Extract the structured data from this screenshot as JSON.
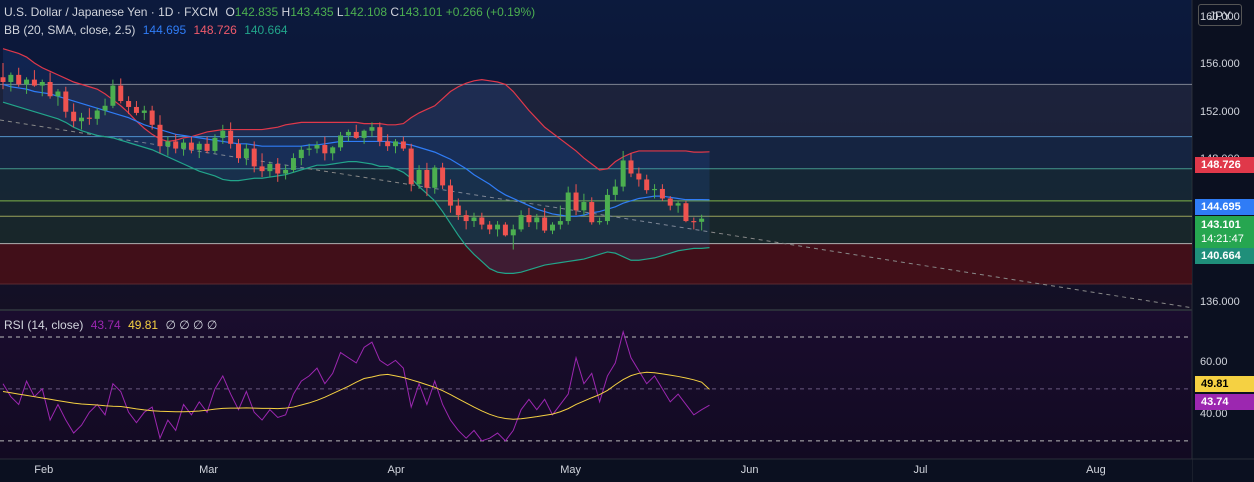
{
  "header": {
    "symbol": "U.S. Dollar / Japanese Yen · 1D · FXCM",
    "open_label": "O",
    "open": "142.835",
    "high_label": "H",
    "high": "143.435",
    "low_label": "L",
    "low": "142.108",
    "close_label": "C",
    "close": "143.101",
    "change": "+0.266 (+0.19%)"
  },
  "bb_legend": {
    "name": "BB (20, SMA, close, 2.5)",
    "basis": "144.695",
    "upper": "148.726",
    "lower": "140.664"
  },
  "rsi_legend": {
    "name": "RSI (14, close)",
    "rsi": "43.74",
    "ma": "49.81",
    "extras": "∅ ∅ ∅ ∅"
  },
  "currency_button": "JPY",
  "price_axis": [
    "160.000",
    "156.000",
    "152.000",
    "148.000",
    "144.000",
    "136.000"
  ],
  "rsi_axis": [
    "60.00",
    "40.00"
  ],
  "time_axis": [
    "Feb",
    "Mar",
    "Apr",
    "May",
    "Jun",
    "Jul",
    "Aug"
  ],
  "price_labels": {
    "upper": "148.726",
    "basis": "144.695",
    "last": "143.101",
    "countdown": "14:21:47",
    "lower": "140.664",
    "rsi_ma": "49.81",
    "rsi": "43.74"
  },
  "colors": {
    "bg": "#0b1020",
    "up": "#4caf50",
    "down": "#ef5350",
    "upper_band": "#e0384a",
    "basis": "#2f7cf6",
    "lower_band": "#22a58a",
    "rsi": "#9c27b0",
    "rsi_ma": "#f5d142"
  },
  "chart_data": {
    "type": "candlestick",
    "title": "U.S. Dollar / Japanese Yen · 1D · FXCM",
    "ylim": [
      135.5,
      161.5
    ],
    "rsi_ylim": [
      23,
      80
    ],
    "horizontal_levels": [
      154.4,
      150.0,
      147.3,
      144.6,
      143.3,
      141.0
    ],
    "dates_month_ticks": [
      "Feb",
      "Mar",
      "Apr",
      "May",
      "Jun",
      "Jul",
      "Aug"
    ],
    "candles": [
      {
        "o": 155.0,
        "h": 156.2,
        "l": 154.0,
        "c": 154.6
      },
      {
        "o": 154.6,
        "h": 155.4,
        "l": 153.8,
        "c": 155.2
      },
      {
        "o": 155.2,
        "h": 155.8,
        "l": 154.2,
        "c": 154.4
      },
      {
        "o": 154.4,
        "h": 155.0,
        "l": 153.6,
        "c": 154.8
      },
      {
        "o": 154.8,
        "h": 155.6,
        "l": 154.2,
        "c": 154.3
      },
      {
        "o": 154.3,
        "h": 154.8,
        "l": 153.4,
        "c": 154.6
      },
      {
        "o": 154.6,
        "h": 155.4,
        "l": 153.2,
        "c": 153.4
      },
      {
        "o": 153.4,
        "h": 154.0,
        "l": 152.6,
        "c": 153.8
      },
      {
        "o": 153.8,
        "h": 154.2,
        "l": 151.6,
        "c": 152.1
      },
      {
        "o": 152.1,
        "h": 152.8,
        "l": 150.8,
        "c": 151.3
      },
      {
        "o": 151.3,
        "h": 152.0,
        "l": 150.6,
        "c": 151.6
      },
      {
        "o": 151.6,
        "h": 152.4,
        "l": 151.0,
        "c": 151.5
      },
      {
        "o": 151.5,
        "h": 152.4,
        "l": 151.0,
        "c": 152.2
      },
      {
        "o": 152.2,
        "h": 153.2,
        "l": 151.8,
        "c": 152.6
      },
      {
        "o": 152.6,
        "h": 154.8,
        "l": 152.4,
        "c": 154.3
      },
      {
        "o": 154.3,
        "h": 154.9,
        "l": 152.8,
        "c": 153.0
      },
      {
        "o": 153.0,
        "h": 153.4,
        "l": 151.9,
        "c": 152.5
      },
      {
        "o": 152.5,
        "h": 153.0,
        "l": 151.8,
        "c": 152.0
      },
      {
        "o": 152.0,
        "h": 152.6,
        "l": 151.4,
        "c": 152.2
      },
      {
        "o": 152.2,
        "h": 152.6,
        "l": 150.6,
        "c": 151.0
      },
      {
        "o": 151.0,
        "h": 151.8,
        "l": 148.6,
        "c": 149.2
      },
      {
        "o": 149.2,
        "h": 150.0,
        "l": 148.4,
        "c": 149.6
      },
      {
        "o": 149.6,
        "h": 150.2,
        "l": 148.6,
        "c": 149.0
      },
      {
        "o": 149.0,
        "h": 149.8,
        "l": 148.4,
        "c": 149.5
      },
      {
        "o": 149.5,
        "h": 150.0,
        "l": 148.6,
        "c": 148.9
      },
      {
        "o": 148.9,
        "h": 149.6,
        "l": 148.2,
        "c": 149.4
      },
      {
        "o": 149.4,
        "h": 150.0,
        "l": 148.6,
        "c": 148.8
      },
      {
        "o": 148.8,
        "h": 150.2,
        "l": 148.6,
        "c": 149.9
      },
      {
        "o": 149.9,
        "h": 151.0,
        "l": 149.4,
        "c": 150.5
      },
      {
        "o": 150.5,
        "h": 151.2,
        "l": 149.0,
        "c": 149.4
      },
      {
        "o": 149.4,
        "h": 149.8,
        "l": 147.8,
        "c": 148.2
      },
      {
        "o": 148.2,
        "h": 149.4,
        "l": 147.6,
        "c": 149.0
      },
      {
        "o": 149.0,
        "h": 149.6,
        "l": 147.0,
        "c": 147.5
      },
      {
        "o": 147.5,
        "h": 148.6,
        "l": 146.6,
        "c": 147.1
      },
      {
        "o": 147.1,
        "h": 147.9,
        "l": 146.6,
        "c": 147.7
      },
      {
        "o": 147.7,
        "h": 148.2,
        "l": 146.2,
        "c": 146.9
      },
      {
        "o": 146.9,
        "h": 147.6,
        "l": 146.4,
        "c": 147.2
      },
      {
        "o": 147.2,
        "h": 148.6,
        "l": 147.0,
        "c": 148.2
      },
      {
        "o": 148.2,
        "h": 149.2,
        "l": 147.6,
        "c": 148.9
      },
      {
        "o": 148.9,
        "h": 149.4,
        "l": 148.4,
        "c": 149.0
      },
      {
        "o": 149.0,
        "h": 149.6,
        "l": 148.6,
        "c": 149.3
      },
      {
        "o": 149.3,
        "h": 150.0,
        "l": 148.0,
        "c": 148.6
      },
      {
        "o": 148.6,
        "h": 149.2,
        "l": 148.0,
        "c": 149.1
      },
      {
        "o": 149.1,
        "h": 150.4,
        "l": 148.8,
        "c": 150.1
      },
      {
        "o": 150.1,
        "h": 150.6,
        "l": 149.6,
        "c": 150.4
      },
      {
        "o": 150.4,
        "h": 151.0,
        "l": 149.8,
        "c": 149.9
      },
      {
        "o": 149.9,
        "h": 150.6,
        "l": 149.4,
        "c": 150.5
      },
      {
        "o": 150.5,
        "h": 151.2,
        "l": 150.0,
        "c": 150.8
      },
      {
        "o": 150.8,
        "h": 151.2,
        "l": 149.2,
        "c": 149.6
      },
      {
        "o": 149.6,
        "h": 150.2,
        "l": 148.8,
        "c": 149.2
      },
      {
        "o": 149.2,
        "h": 149.8,
        "l": 148.6,
        "c": 149.6
      },
      {
        "o": 149.6,
        "h": 150.0,
        "l": 148.8,
        "c": 149.0
      },
      {
        "o": 149.0,
        "h": 149.4,
        "l": 145.4,
        "c": 146.0
      },
      {
        "o": 146.0,
        "h": 147.6,
        "l": 145.6,
        "c": 147.2
      },
      {
        "o": 147.2,
        "h": 147.8,
        "l": 145.0,
        "c": 145.7
      },
      {
        "o": 145.7,
        "h": 147.6,
        "l": 145.2,
        "c": 147.4
      },
      {
        "o": 147.4,
        "h": 147.8,
        "l": 145.6,
        "c": 145.9
      },
      {
        "o": 145.9,
        "h": 146.4,
        "l": 143.6,
        "c": 144.2
      },
      {
        "o": 144.2,
        "h": 144.8,
        "l": 143.0,
        "c": 143.4
      },
      {
        "o": 143.4,
        "h": 143.8,
        "l": 142.2,
        "c": 142.9
      },
      {
        "o": 142.9,
        "h": 143.6,
        "l": 142.4,
        "c": 143.2
      },
      {
        "o": 143.2,
        "h": 143.6,
        "l": 142.2,
        "c": 142.6
      },
      {
        "o": 142.6,
        "h": 142.9,
        "l": 141.8,
        "c": 142.2
      },
      {
        "o": 142.2,
        "h": 142.9,
        "l": 141.6,
        "c": 142.6
      },
      {
        "o": 142.6,
        "h": 142.8,
        "l": 141.6,
        "c": 141.7
      },
      {
        "o": 141.7,
        "h": 142.6,
        "l": 140.5,
        "c": 142.2
      },
      {
        "o": 142.2,
        "h": 143.8,
        "l": 142.0,
        "c": 143.4
      },
      {
        "o": 143.4,
        "h": 144.0,
        "l": 142.4,
        "c": 142.8
      },
      {
        "o": 142.8,
        "h": 143.5,
        "l": 142.2,
        "c": 143.2
      },
      {
        "o": 143.2,
        "h": 144.0,
        "l": 141.9,
        "c": 142.1
      },
      {
        "o": 142.1,
        "h": 142.8,
        "l": 141.8,
        "c": 142.6
      },
      {
        "o": 142.6,
        "h": 144.2,
        "l": 142.2,
        "c": 142.9
      },
      {
        "o": 142.9,
        "h": 145.8,
        "l": 142.6,
        "c": 145.3
      },
      {
        "o": 145.3,
        "h": 146.0,
        "l": 143.4,
        "c": 143.8
      },
      {
        "o": 143.8,
        "h": 145.2,
        "l": 143.4,
        "c": 144.5
      },
      {
        "o": 144.5,
        "h": 144.9,
        "l": 142.6,
        "c": 142.8
      },
      {
        "o": 142.8,
        "h": 143.2,
        "l": 142.6,
        "c": 142.9
      },
      {
        "o": 142.9,
        "h": 145.6,
        "l": 142.6,
        "c": 145.1
      },
      {
        "o": 145.1,
        "h": 146.4,
        "l": 144.6,
        "c": 145.8
      },
      {
        "o": 145.8,
        "h": 148.8,
        "l": 145.4,
        "c": 148.0
      },
      {
        "o": 148.0,
        "h": 148.6,
        "l": 146.6,
        "c": 146.9
      },
      {
        "o": 146.9,
        "h": 147.4,
        "l": 145.8,
        "c": 146.4
      },
      {
        "o": 146.4,
        "h": 146.8,
        "l": 145.2,
        "c": 145.5
      },
      {
        "o": 145.5,
        "h": 146.0,
        "l": 144.8,
        "c": 145.6
      },
      {
        "o": 145.6,
        "h": 146.0,
        "l": 144.6,
        "c": 144.8
      },
      {
        "o": 144.8,
        "h": 145.0,
        "l": 143.8,
        "c": 144.2
      },
      {
        "o": 144.2,
        "h": 144.6,
        "l": 143.6,
        "c": 144.4
      },
      {
        "o": 144.4,
        "h": 144.6,
        "l": 142.8,
        "c": 142.9
      },
      {
        "o": 142.9,
        "h": 143.2,
        "l": 142.2,
        "c": 142.8
      },
      {
        "o": 142.835,
        "h": 143.435,
        "l": 142.108,
        "c": 143.101
      }
    ],
    "upper_band": [
      157.4,
      157.2,
      157.0,
      156.7,
      156.2,
      155.8,
      155.5,
      155.2,
      154.9,
      154.6,
      154.4,
      154.2,
      154.0,
      153.6,
      153.1,
      152.6,
      152.0,
      151.3,
      150.7,
      150.2,
      149.8,
      149.6,
      149.7,
      149.9,
      150.0,
      150.2,
      150.4,
      150.5,
      150.6,
      150.6,
      150.6,
      150.6,
      150.6,
      150.6,
      150.7,
      150.8,
      151.0,
      151.1,
      151.2,
      151.2,
      151.2,
      151.2,
      151.2,
      151.2,
      151.2,
      151.2,
      151.1,
      151.1,
      151.1,
      151.0,
      151.0,
      151.1,
      151.6,
      152.0,
      152.3,
      152.6,
      153.2,
      153.8,
      154.2,
      154.5,
      154.7,
      154.8,
      154.7,
      154.6,
      154.4,
      153.8,
      153.0,
      152.2,
      151.5,
      150.8,
      150.3,
      149.8,
      149.3,
      148.8,
      148.2,
      147.7,
      147.2,
      147.3,
      147.9,
      148.3,
      148.6,
      148.8,
      148.8,
      148.8,
      148.8,
      148.8,
      148.8,
      148.8,
      148.7,
      148.7,
      148.726
    ],
    "basis": [
      154.4,
      154.2,
      154.1,
      154.0,
      153.8,
      153.7,
      153.6,
      153.4,
      153.2,
      153.0,
      152.8,
      152.6,
      152.4,
      152.2,
      152.0,
      151.8,
      151.6,
      151.3,
      151.0,
      150.8,
      150.6,
      150.4,
      150.2,
      150.1,
      150.0,
      149.9,
      149.8,
      149.7,
      149.6,
      149.5,
      149.4,
      149.4,
      149.3,
      149.2,
      149.2,
      149.2,
      149.2,
      149.2,
      149.2,
      149.3,
      149.3,
      149.4,
      149.5,
      149.6,
      149.6,
      149.6,
      149.6,
      149.6,
      149.6,
      149.6,
      149.5,
      149.4,
      149.3,
      149.1,
      148.9,
      148.7,
      148.4,
      148.1,
      147.7,
      147.3,
      146.8,
      146.4,
      146.0,
      145.5,
      145.1,
      144.8,
      144.5,
      144.2,
      143.9,
      143.7,
      143.5,
      143.4,
      143.3,
      143.3,
      143.4,
      143.6,
      143.7,
      143.9,
      144.1,
      144.4,
      144.6,
      144.8,
      144.9,
      145.0,
      145.0,
      144.9,
      144.8,
      144.7,
      144.7,
      144.7,
      144.695
    ],
    "lower_band": [
      152.9,
      152.7,
      152.5,
      152.3,
      152.1,
      151.9,
      151.7,
      151.5,
      151.2,
      150.8,
      150.5,
      150.3,
      150.1,
      150.0,
      149.9,
      149.7,
      149.5,
      149.3,
      149.1,
      148.9,
      148.6,
      148.3,
      148.0,
      147.7,
      147.4,
      147.1,
      146.9,
      146.7,
      146.4,
      146.3,
      146.3,
      146.4,
      146.5,
      146.5,
      146.6,
      146.7,
      146.8,
      147.0,
      147.2,
      147.4,
      147.6,
      147.6,
      147.7,
      147.8,
      147.9,
      147.9,
      147.8,
      147.7,
      147.5,
      147.5,
      147.3,
      147.0,
      146.5,
      145.8,
      145.2,
      144.6,
      143.7,
      142.7,
      141.7,
      140.8,
      140.1,
      139.5,
      138.9,
      138.6,
      138.5,
      138.5,
      138.6,
      138.8,
      139.0,
      139.2,
      139.3,
      139.4,
      139.5,
      139.6,
      139.7,
      139.9,
      140.1,
      140.3,
      140.2,
      139.9,
      139.6,
      139.6,
      139.7,
      139.8,
      140.0,
      140.2,
      140.4,
      140.5,
      140.6,
      140.6,
      140.664
    ],
    "rsi": [
      52,
      47,
      44,
      53,
      47,
      50,
      38,
      44,
      38,
      33,
      36,
      41,
      44,
      40,
      52,
      49,
      41,
      37,
      41,
      43,
      31,
      38,
      34,
      44,
      40,
      45,
      41,
      50,
      55,
      48,
      42,
      49,
      41,
      38,
      42,
      39,
      40,
      48,
      53,
      55,
      58,
      52,
      56,
      64,
      62,
      60,
      66,
      68,
      61,
      59,
      61,
      58,
      43,
      52,
      44,
      53,
      44,
      38,
      34,
      31,
      34,
      30,
      31,
      33,
      30,
      34,
      42,
      46,
      42,
      46,
      40,
      44,
      48,
      62,
      52,
      56,
      45,
      55,
      60,
      72,
      62,
      57,
      52,
      55,
      50,
      45,
      48,
      44,
      40,
      42,
      43.74
    ],
    "rsi_ma": [
      49,
      48.5,
      48,
      47.5,
      47,
      46.5,
      46,
      45.5,
      45,
      44.5,
      44.2,
      44,
      43.8,
      43.5,
      43.3,
      43.2,
      42.8,
      42.3,
      41.9,
      41.6,
      41.4,
      41.3,
      41.2,
      41.2,
      41.3,
      41.5,
      41.8,
      42.2,
      42.5,
      42.6,
      42.6,
      42.7,
      42.6,
      42.5,
      42.5,
      42.4,
      42.6,
      43,
      43.8,
      44.6,
      45.6,
      46.8,
      48.2,
      49.6,
      51,
      52.6,
      54,
      54.6,
      55.3,
      55.6,
      55,
      54.4,
      53.5,
      52.6,
      51.6,
      50.6,
      49.3,
      47.8,
      46.2,
      44.6,
      43,
      41.5,
      40.2,
      39.2,
      38.6,
      38.3,
      38.5,
      38.9,
      39.3,
      39.8,
      40.3,
      41.2,
      42.4,
      44,
      45.3,
      46.6,
      47.8,
      49.4,
      51.6,
      53.6,
      55.1,
      56,
      56.4,
      56.2,
      55.8,
      55.3,
      54.8,
      54.2,
      53.5,
      52.6,
      49.81
    ]
  }
}
